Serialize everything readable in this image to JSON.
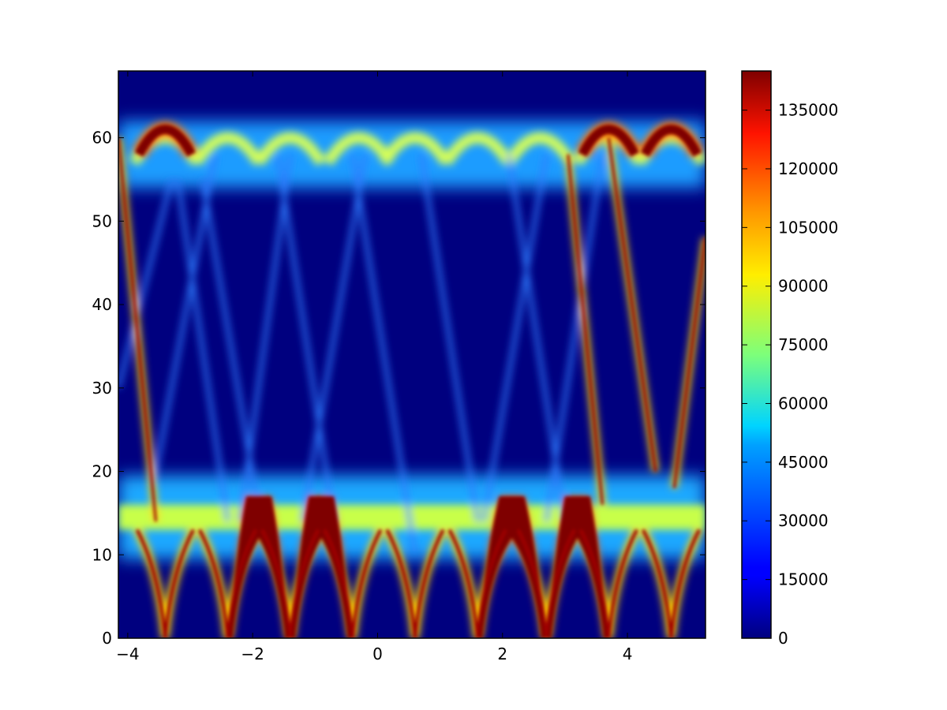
{
  "chart_data": {
    "type": "heatmap",
    "title": "",
    "xlabel": "",
    "ylabel": "",
    "xlim": [
      -4.15,
      5.25
    ],
    "ylim": [
      0,
      68
    ],
    "x_ticks": [
      -4,
      -2,
      0,
      2,
      4
    ],
    "x_tick_labels": [
      "−4",
      "−2",
      "0",
      "2",
      "4"
    ],
    "y_ticks": [
      0,
      10,
      20,
      30,
      40,
      50,
      60
    ],
    "y_tick_labels": [
      "0",
      "10",
      "20",
      "30",
      "40",
      "50",
      "60"
    ],
    "grid": false,
    "colormap": "jet",
    "colorbar": {
      "range": [
        0,
        145000
      ],
      "ticks": [
        0,
        15000,
        30000,
        45000,
        60000,
        75000,
        90000,
        105000,
        120000,
        135000
      ],
      "tick_labels": [
        "0",
        "15000",
        "30000",
        "45000",
        "60000",
        "75000",
        "90000",
        "105000",
        "120000",
        "135000"
      ]
    },
    "features": {
      "upper_band": {
        "y_center": 58,
        "y_halfwidth": 3,
        "arch_peaks_x": [
          -3.4,
          -2.4,
          -1.4,
          -0.3,
          0.6,
          1.6,
          2.6,
          3.7,
          4.7
        ],
        "arch_height": 5,
        "hot_arch_x": [
          -3.4,
          3.7,
          4.7
        ]
      },
      "lower_band": {
        "y_center": 14.5,
        "y_halfwidth": 3,
        "dip_x": [
          -3.4,
          -2.4,
          -1.4,
          -0.4,
          0.6,
          1.6,
          2.7,
          3.7,
          4.7
        ],
        "dip_bottom_y": 0,
        "hot_segments_x": [
          [
            -2.4,
            -0.4
          ],
          [
            1.6,
            3.7
          ]
        ]
      },
      "strong_diagonals": [
        {
          "x": [
            -4.15,
            -3.55
          ],
          "y": [
            60,
            14
          ]
        },
        {
          "x": [
            3.05,
            3.6
          ],
          "y": [
            58,
            16
          ]
        },
        {
          "x": [
            3.7,
            4.45
          ],
          "y": [
            60,
            20
          ]
        },
        {
          "x": [
            4.75,
            5.25
          ],
          "y": [
            18,
            48
          ]
        }
      ],
      "faint_diagonals": [
        {
          "x": [
            -4.15,
            -3.3
          ],
          "y": [
            30,
            55
          ]
        },
        {
          "x": [
            -3.2,
            -2.4
          ],
          "y": [
            55,
            14
          ]
        },
        {
          "x": [
            -3.6,
            -2.6
          ],
          "y": [
            18,
            58
          ]
        },
        {
          "x": [
            -2.8,
            -1.9
          ],
          "y": [
            55,
            15
          ]
        },
        {
          "x": [
            -2.2,
            -1.4
          ],
          "y": [
            14,
            58
          ]
        },
        {
          "x": [
            -1.6,
            -0.7
          ],
          "y": [
            58,
            14
          ]
        },
        {
          "x": [
            -1.2,
            -0.2
          ],
          "y": [
            14,
            58
          ]
        },
        {
          "x": [
            -0.4,
            0.6
          ],
          "y": [
            58,
            10
          ]
        },
        {
          "x": [
            0.7,
            1.6
          ],
          "y": [
            58,
            14
          ]
        },
        {
          "x": [
            1.7,
            2.7
          ],
          "y": [
            14,
            58
          ]
        },
        {
          "x": [
            2.1,
            3.0
          ],
          "y": [
            58,
            14
          ]
        },
        {
          "x": [
            2.7,
            3.6
          ],
          "y": [
            14,
            58
          ]
        }
      ]
    }
  }
}
